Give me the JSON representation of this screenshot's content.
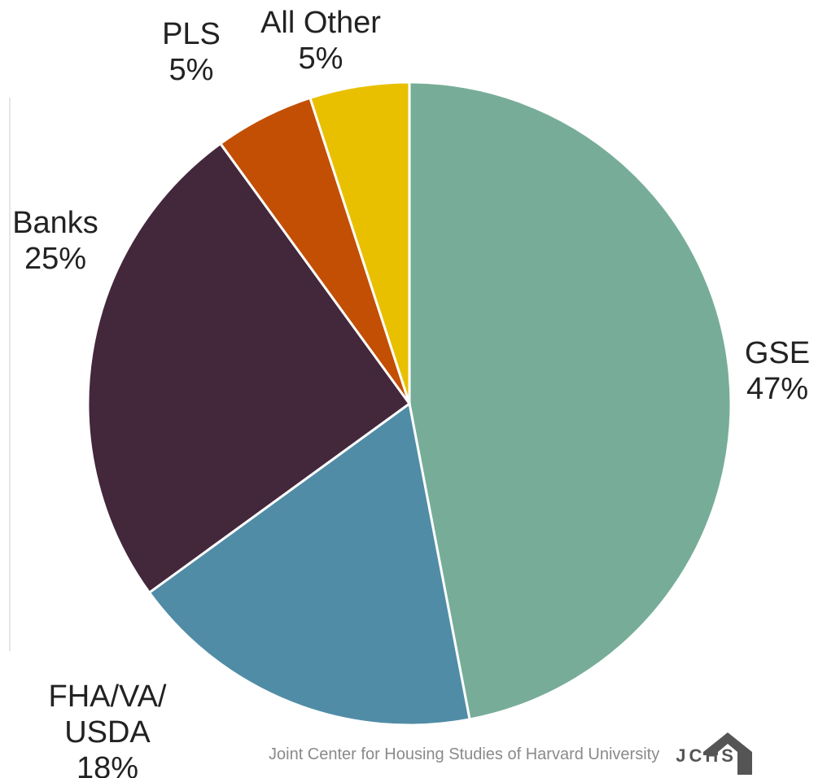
{
  "chart_data": {
    "type": "pie",
    "start_angle_deg": 0,
    "direction": "clockwise",
    "slices": [
      {
        "label": "GSE",
        "value": 47,
        "value_label": "47%",
        "color": "#77ad98"
      },
      {
        "label": "FHA/VA/\nUSDA",
        "value": 18,
        "value_label": "18%",
        "color": "#508ca6"
      },
      {
        "label": "Banks",
        "value": 25,
        "value_label": "25%",
        "color": "#43273b"
      },
      {
        "label": "PLS",
        "value": 5,
        "value_label": "5%",
        "color": "#c24f03"
      },
      {
        "label": "All Other",
        "value": 5,
        "value_label": "5%",
        "color": "#e8c000"
      }
    ]
  },
  "source": {
    "text": "Joint Center for Housing Studies of Harvard University",
    "logo_text": "JCHS"
  }
}
